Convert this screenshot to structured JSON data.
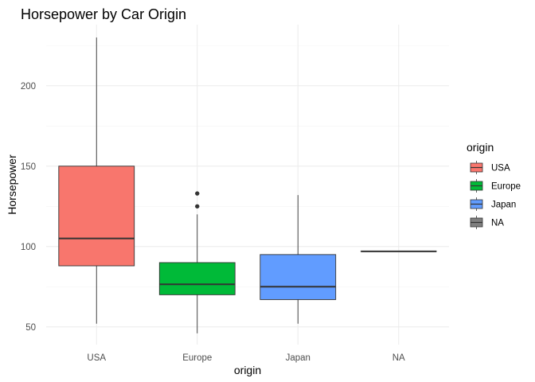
{
  "chart_data": {
    "type": "boxplot",
    "title": "Horsepower by Car Origin",
    "xlabel": "origin",
    "ylabel": "Horsepower",
    "ylim": [
      39,
      238
    ],
    "yticks": [
      50,
      100,
      150,
      200
    ],
    "grid": true,
    "legend": {
      "title": "origin",
      "position": "right"
    },
    "categories": [
      "USA",
      "Europe",
      "Japan",
      "NA"
    ],
    "boxes": [
      {
        "category": "USA",
        "fill": "#F8766D",
        "min": 52,
        "q1": 88,
        "median": 105,
        "q3": 150,
        "max": 230,
        "outliers": []
      },
      {
        "category": "Europe",
        "fill": "#00BA38",
        "min": 46,
        "q1": 70,
        "median": 76.5,
        "q3": 90,
        "max": 120,
        "outliers": [
          125,
          133
        ]
      },
      {
        "category": "Japan",
        "fill": "#619CFF",
        "min": 52,
        "q1": 67,
        "median": 75,
        "q3": 95,
        "max": 132,
        "outliers": []
      },
      {
        "category": "NA",
        "fill": "#7F7F7F",
        "min": 97,
        "q1": 97,
        "median": 97,
        "q3": 97,
        "max": 97,
        "outliers": []
      }
    ]
  }
}
